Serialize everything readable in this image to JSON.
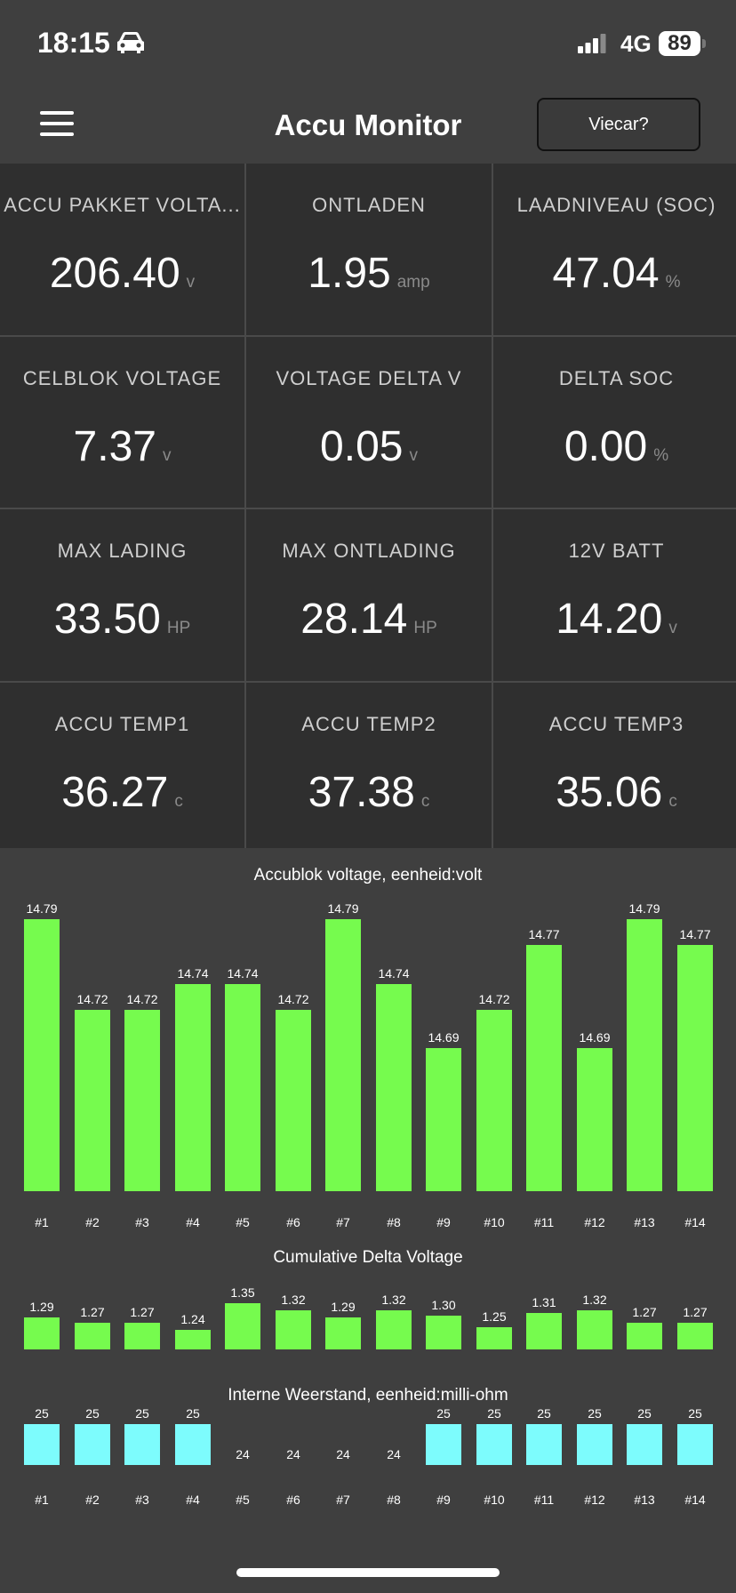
{
  "status": {
    "time": "18:15",
    "network": "4G",
    "battery": "89"
  },
  "header": {
    "title": "Accu Monitor",
    "button_label": "Viecar?"
  },
  "tiles": [
    {
      "label": "ACCU PAKKET VOLTA...",
      "value": "206.40",
      "unit": "v"
    },
    {
      "label": "ONTLADEN",
      "value": "1.95",
      "unit": "amp"
    },
    {
      "label": "LAADNIVEAU (SOC)",
      "value": "47.04",
      "unit": "%"
    },
    {
      "label": "CELBLOK VOLTAGE",
      "value": "7.37",
      "unit": "v"
    },
    {
      "label": "VOLTAGE DELTA V",
      "value": "0.05",
      "unit": "v"
    },
    {
      "label": "DELTA SOC",
      "value": "0.00",
      "unit": "%"
    },
    {
      "label": "MAX LADING",
      "value": "33.50",
      "unit": "HP"
    },
    {
      "label": "MAX ONTLADING",
      "value": "28.14",
      "unit": "HP"
    },
    {
      "label": "12V BATT",
      "value": "14.20",
      "unit": "v"
    },
    {
      "label": "ACCU TEMP1",
      "value": "36.27",
      "unit": "c"
    },
    {
      "label": "ACCU TEMP2",
      "value": "37.38",
      "unit": "c"
    },
    {
      "label": "ACCU TEMP3",
      "value": "35.06",
      "unit": "c"
    }
  ],
  "chart_data": [
    {
      "type": "bar",
      "title": "Accublok voltage, eenheid:volt",
      "categories": [
        "#1",
        "#2",
        "#3",
        "#4",
        "#5",
        "#6",
        "#7",
        "#8",
        "#9",
        "#10",
        "#11",
        "#12",
        "#13",
        "#14"
      ],
      "values": [
        14.79,
        14.72,
        14.72,
        14.74,
        14.74,
        14.72,
        14.79,
        14.74,
        14.69,
        14.72,
        14.77,
        14.69,
        14.79,
        14.77
      ],
      "value_labels": [
        "14.79",
        "14.72",
        "14.72",
        "14.74",
        "14.74",
        "14.72",
        "14.79",
        "14.74",
        "14.69",
        "14.72",
        "14.77",
        "14.69",
        "14.79",
        "14.77"
      ],
      "ylim": [
        14.64,
        14.79
      ],
      "color": "#76fb4e"
    },
    {
      "type": "bar",
      "title": "Cumulative Delta Voltage",
      "values": [
        1.29,
        1.27,
        1.27,
        1.24,
        1.35,
        1.32,
        1.29,
        1.32,
        1.3,
        1.25,
        1.31,
        1.32,
        1.27,
        1.27
      ],
      "value_labels": [
        "1.29",
        "1.27",
        "1.27",
        "1.24",
        "1.35",
        "1.32",
        "1.29",
        "1.32",
        "1.30",
        "1.25",
        "1.31",
        "1.32",
        "1.27",
        "1.27"
      ],
      "ylim": [
        1.21,
        1.35
      ],
      "color": "#76fb4e"
    },
    {
      "type": "bar",
      "title": "Interne Weerstand, eenheid:milli-ohm",
      "categories": [
        "#1",
        "#2",
        "#3",
        "#4",
        "#5",
        "#6",
        "#7",
        "#8",
        "#9",
        "#10",
        "#11",
        "#12",
        "#13",
        "#14"
      ],
      "values": [
        25,
        25,
        25,
        25,
        24,
        24,
        24,
        24,
        25,
        25,
        25,
        25,
        25,
        25
      ],
      "value_labels": [
        "25",
        "25",
        "25",
        "25",
        "24",
        "24",
        "24",
        "24",
        "25",
        "25",
        "25",
        "25",
        "25",
        "25"
      ],
      "ylim": [
        24,
        25
      ],
      "color": "#7dfcfd"
    }
  ]
}
